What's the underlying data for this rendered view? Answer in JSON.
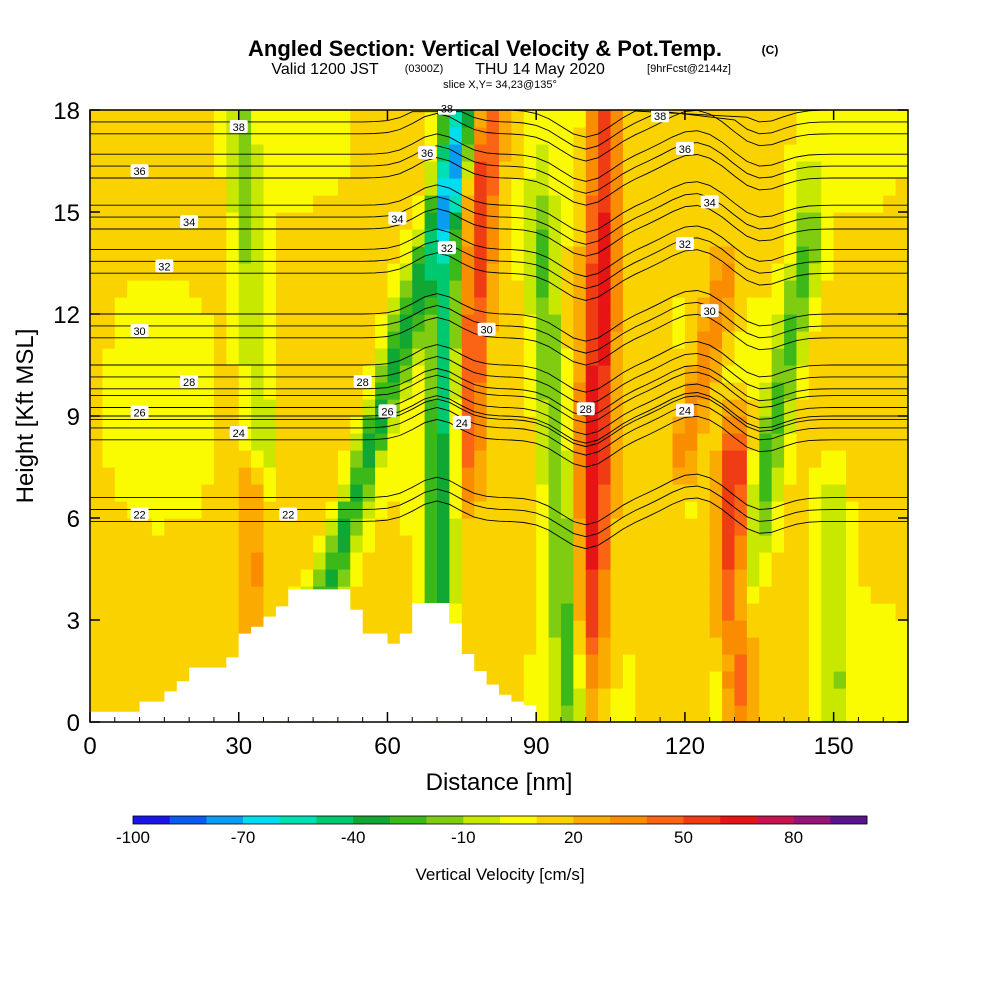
{
  "title": {
    "main": "Angled Section: Vertical Velocity & Pot.Temp.",
    "main_suffix": "(C)",
    "valid_prefix": "Valid 1200 JST",
    "valid_zulu": "(0300Z)",
    "valid_date": "THU 14 May 2020",
    "valid_fcst": "[9hrFcst@2144z]",
    "slice": "slice X,Y= 34,23@135°"
  },
  "chart_data": {
    "type": "heatmap",
    "title": "Angled Section: Vertical Velocity & Pot.Temp.",
    "xlabel": "Distance [nm]",
    "ylabel": "Height [Kft MSL]",
    "xlim": [
      0,
      165
    ],
    "ylim": [
      0,
      18
    ],
    "xticks": [
      0,
      30,
      60,
      90,
      120,
      150
    ],
    "yticks": [
      0,
      3,
      6,
      9,
      12,
      15,
      18
    ],
    "grid": false,
    "colorbar": {
      "title": "Vertical Velocity [cm/s]",
      "min": -100,
      "max": 100,
      "step": 10,
      "tick_labels": [
        "-100",
        "-70",
        "-40",
        "-10",
        "20",
        "50",
        "80"
      ],
      "tick_values": [
        -100,
        -70,
        -40,
        -10,
        20,
        50,
        80
      ],
      "colors": [
        "#1a14e8",
        "#0a5cf0",
        "#0a9cf0",
        "#00dcf0",
        "#00e0b4",
        "#00c86e",
        "#10a832",
        "#3cb818",
        "#80cc10",
        "#c8e800",
        "#fafa00",
        "#fad200",
        "#faaa00",
        "#fa8c00",
        "#fa6414",
        "#f03c14",
        "#e61414",
        "#c81450",
        "#961478",
        "#5a148c"
      ]
    },
    "velocity_cells": {
      "note_columns_nm": "columns every 2.5 nm from 0 to 165, rows every 1 kft from 0 to 18",
      "cores": [
        {
          "x": 44,
          "x_top": 77,
          "y_low": 2,
          "y_high": 18,
          "value": -45
        },
        {
          "x": 70,
          "x_top": 73,
          "y_low": 3,
          "y_high": 18,
          "value": -50
        },
        {
          "x": 76,
          "x_top": 80,
          "y_low": 8,
          "y_high": 18,
          "value": 45
        },
        {
          "x": 101,
          "x_top": 104,
          "y_low": 3,
          "y_high": 18,
          "value": 50
        },
        {
          "x": 97,
          "x_top": 91,
          "y_low": 1,
          "y_high": 14,
          "value": -35
        },
        {
          "x": 128,
          "x_top": 145,
          "y_low": 1,
          "y_high": 14,
          "value": -35
        },
        {
          "x": 130,
          "x_top": 130,
          "y_low": 1,
          "y_high": 8,
          "value": 55
        },
        {
          "x": 120,
          "x_top": 128,
          "y_low": 8,
          "y_high": 13,
          "value": 30
        },
        {
          "x": 35,
          "x_top": 30,
          "y_low": 8,
          "y_high": 18,
          "value": -25
        },
        {
          "x": 150,
          "x_top": 150,
          "y_low": 1,
          "y_high": 7,
          "value": -20
        },
        {
          "x": 33,
          "x_top": 33,
          "y_low": 3,
          "y_high": 7,
          "value": 20
        }
      ]
    },
    "isentropes": {
      "levels": [
        22,
        24,
        26,
        28,
        30,
        32,
        34,
        36,
        38
      ],
      "labels": [
        "22",
        "24",
        "26",
        "28",
        "30",
        "32",
        "34",
        "36",
        "38"
      ]
    },
    "terrain": {
      "x": [
        0,
        10,
        15,
        17.5,
        20,
        22.5,
        27.5,
        30,
        32.5,
        35,
        37.5,
        40,
        42.5,
        47.5,
        52.5,
        55,
        60,
        62.5,
        65,
        70,
        72.5,
        75,
        77.5,
        80,
        82.5,
        85,
        87.5,
        90,
        165
      ],
      "y": [
        0.3,
        0.6,
        0.9,
        1.2,
        1.6,
        1.6,
        1.9,
        2.6,
        2.8,
        3.1,
        3.4,
        3.9,
        3.9,
        3.9,
        3.3,
        2.6,
        2.3,
        2.6,
        3.5,
        3.5,
        2.9,
        2.0,
        1.5,
        1.1,
        0.8,
        0.6,
        0.5,
        0.0,
        0.0
      ]
    }
  }
}
